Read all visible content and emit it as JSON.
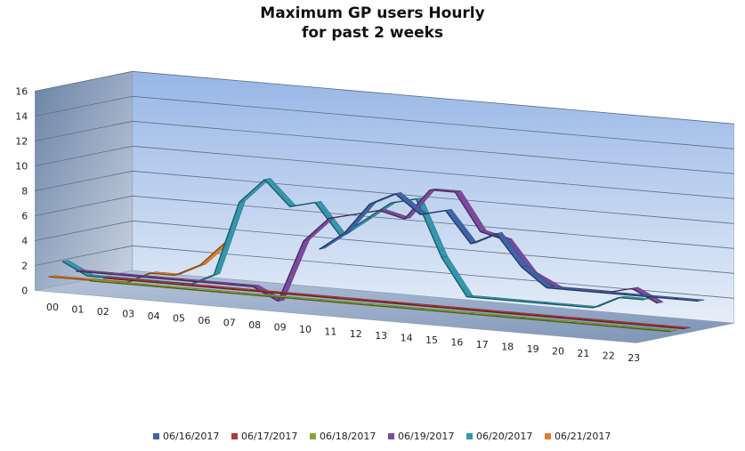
{
  "chart_data": {
    "type": "line",
    "title_line1": "Maximum GP users Hourly",
    "title_line2": "for past 2 weeks",
    "xlabel": "",
    "ylabel": "",
    "ylim": [
      0,
      16
    ],
    "y_ticks": [
      "0",
      "2",
      "4",
      "6",
      "8",
      "10",
      "12",
      "14",
      "16"
    ],
    "categories": [
      "00",
      "01",
      "02",
      "03",
      "04",
      "05",
      "06",
      "07",
      "08",
      "09",
      "10",
      "11",
      "12",
      "13",
      "14",
      "15",
      "16",
      "17",
      "18",
      "19",
      "20",
      "21",
      "22",
      "23"
    ],
    "grid": true,
    "legend": "bottom",
    "series": [
      {
        "name": "06/16/2017",
        "color": "#3E64A8",
        "values": [
          null,
          null,
          null,
          null,
          null,
          null,
          null,
          null,
          3.5,
          5,
          7.5,
          8.5,
          7,
          7.5,
          5,
          6,
          3.5,
          2,
          2,
          2,
          2,
          2,
          2,
          2
        ]
      },
      {
        "name": "06/17/2017",
        "color": "#B03A3A",
        "values": [
          0,
          0,
          0,
          0,
          0,
          0,
          0,
          0,
          0,
          0,
          0,
          0,
          0,
          0,
          0,
          0,
          0,
          0,
          0,
          0,
          0,
          0,
          0,
          0
        ]
      },
      {
        "name": "06/18/2017",
        "color": "#86A536",
        "values": [
          0,
          0,
          0,
          0,
          0,
          0,
          0,
          0,
          0,
          0,
          0,
          0,
          0,
          0,
          0,
          0,
          0,
          0,
          0,
          0,
          0,
          0,
          0,
          0
        ]
      },
      {
        "name": "06/19/2017",
        "color": "#7B4A9E",
        "values": [
          1,
          1,
          1,
          1,
          1,
          1,
          1,
          1,
          0,
          5,
          7,
          7.5,
          8,
          7.5,
          10,
          10,
          7,
          6.5,
          4,
          3,
          3,
          3,
          3.5,
          2.5
        ]
      },
      {
        "name": "06/20/2017",
        "color": "#3397AE",
        "values": [
          2,
          1,
          1,
          1,
          1,
          1,
          2,
          8,
          10,
          8,
          8.5,
          6,
          7.5,
          9,
          9.5,
          5,
          2,
          2,
          2,
          2,
          2,
          2,
          3,
          3
        ]
      },
      {
        "name": "06/21/2017",
        "color": "#E07E26",
        "values": [
          1,
          1,
          1,
          1,
          2,
          2,
          3,
          5,
          null,
          null,
          null,
          null,
          null,
          null,
          null,
          null,
          null,
          null,
          null,
          null,
          null,
          null,
          null,
          null
        ]
      }
    ]
  }
}
